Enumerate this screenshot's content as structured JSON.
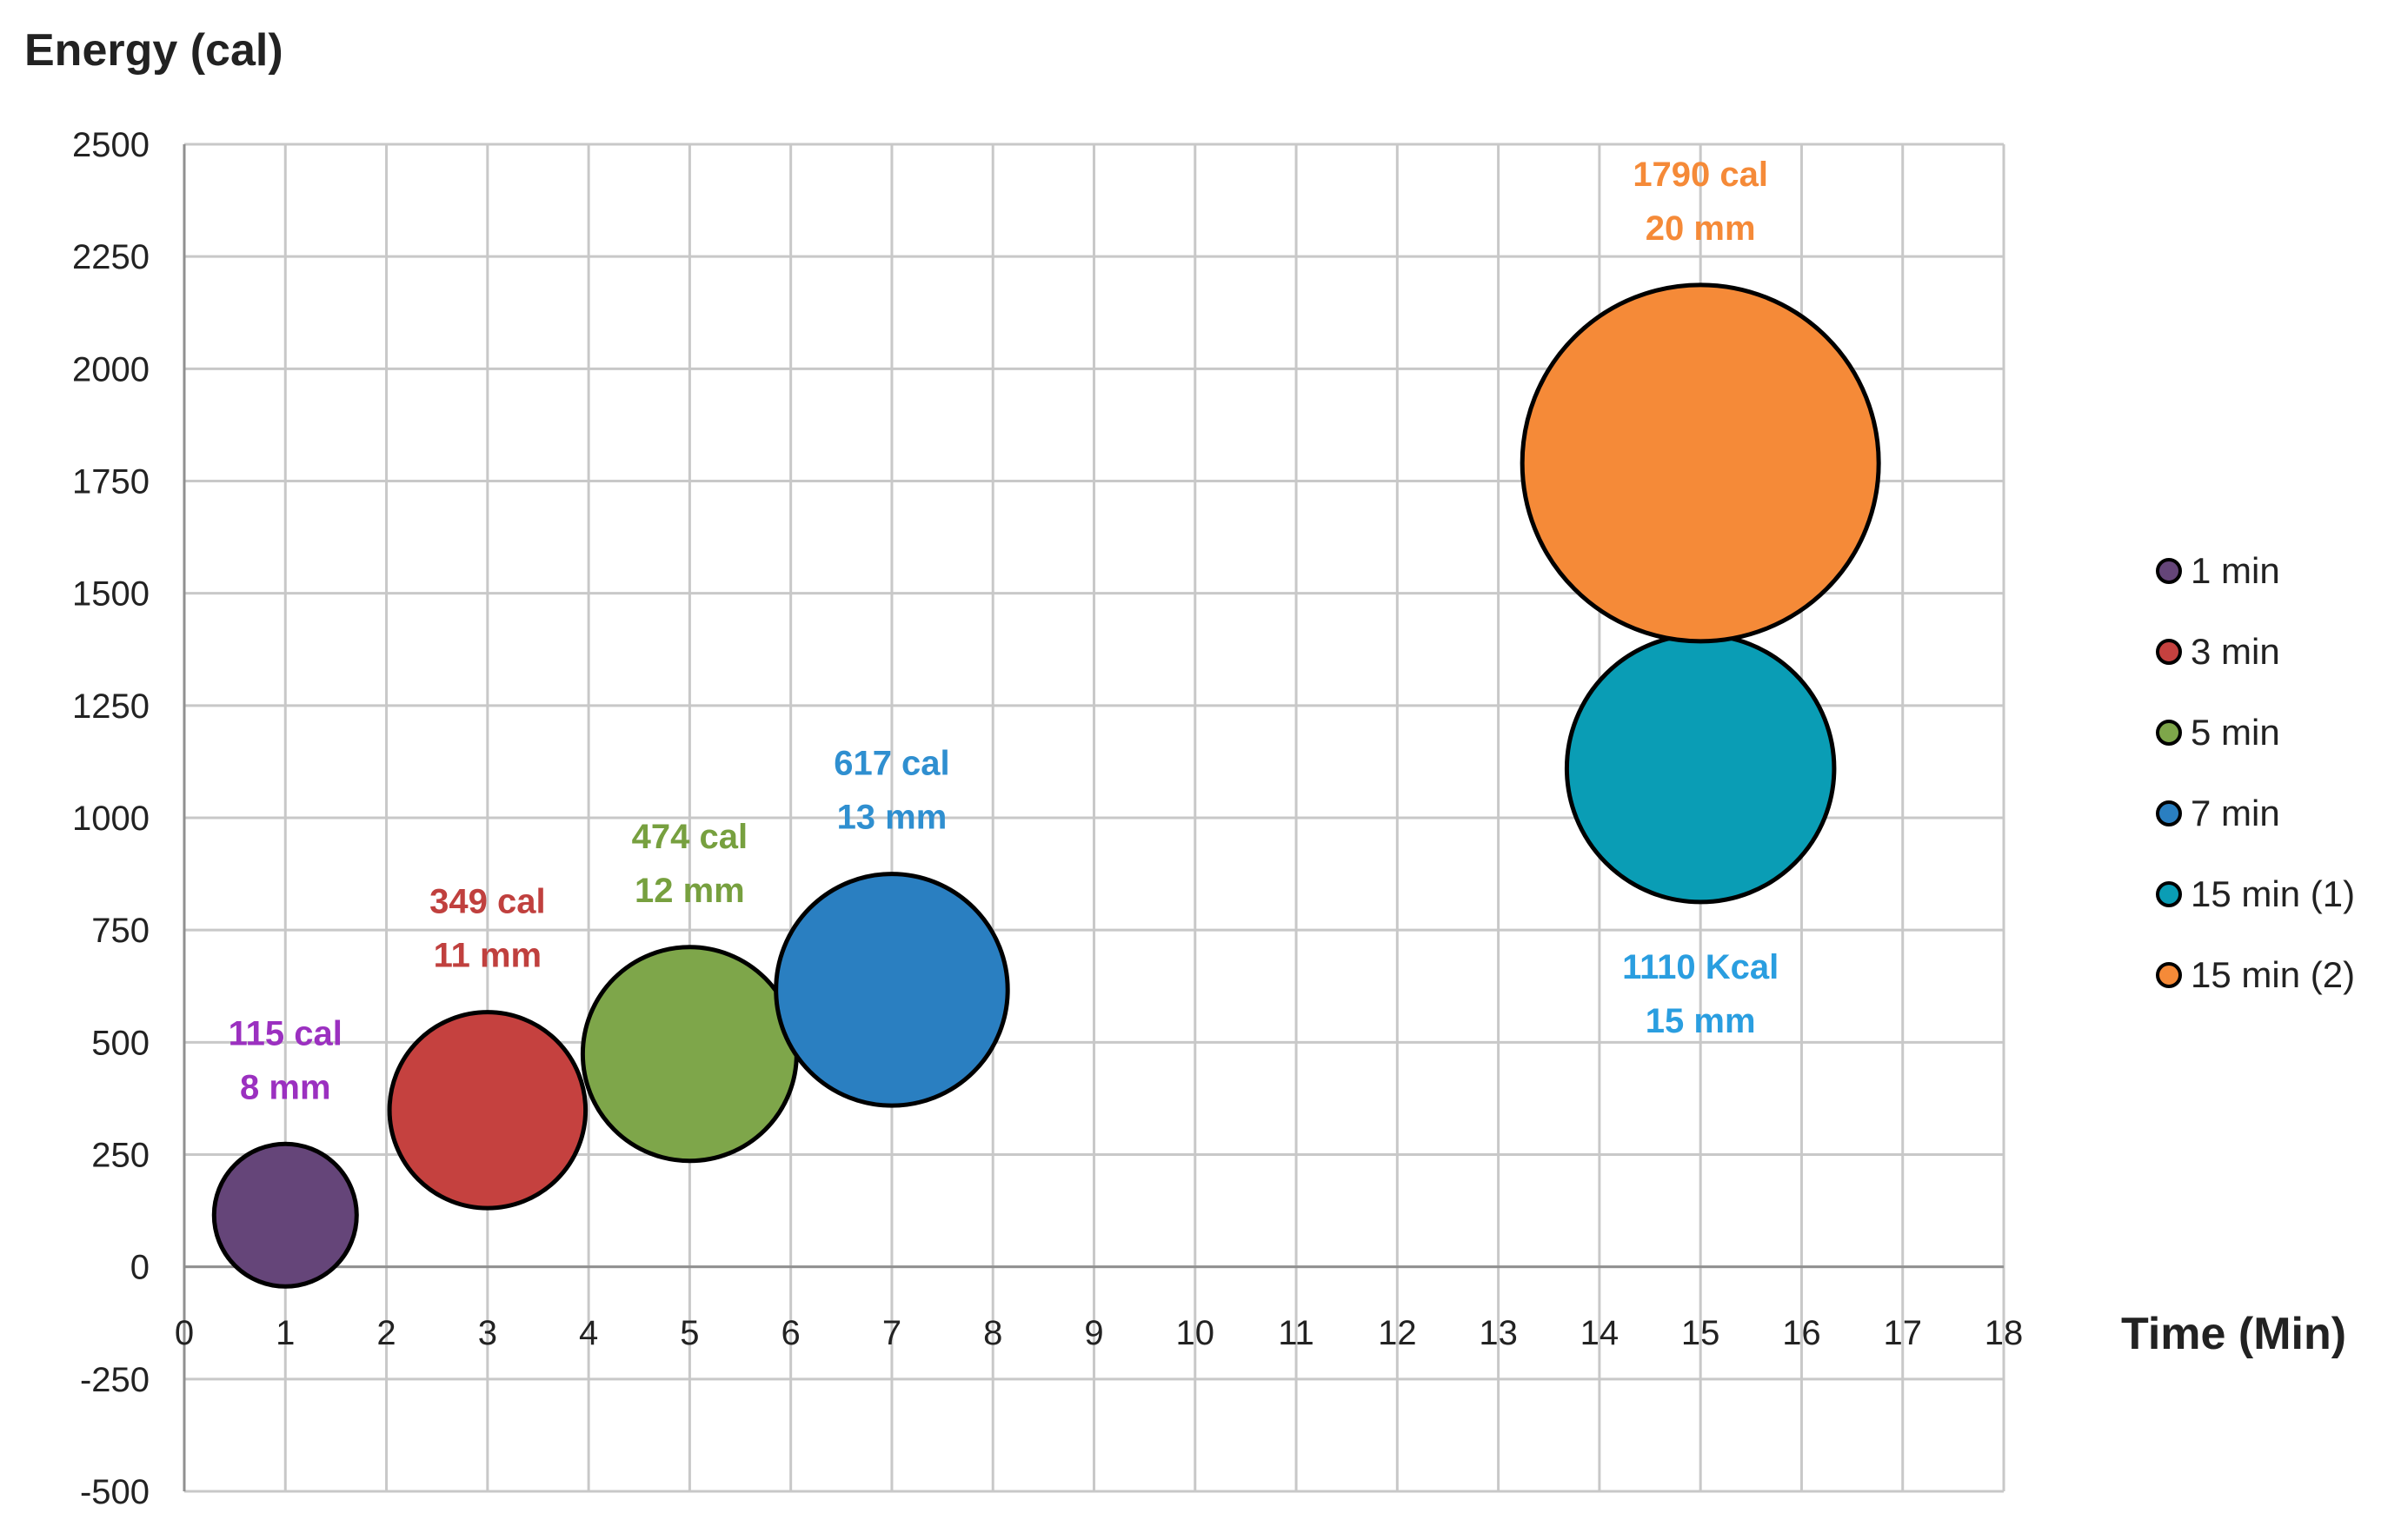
{
  "chart_data": {
    "type": "bubble",
    "ylabel": "Energy (cal)",
    "xlabel": "Time (Min)",
    "xlim": [
      0,
      18
    ],
    "ylim": [
      -500,
      2500
    ],
    "x_ticks": [
      0,
      1,
      2,
      3,
      4,
      5,
      6,
      7,
      8,
      9,
      10,
      11,
      12,
      13,
      14,
      15,
      16,
      17,
      18
    ],
    "y_ticks": [
      -500,
      -250,
      0,
      250,
      500,
      750,
      1000,
      1250,
      1500,
      1750,
      2000,
      2250,
      2500
    ],
    "grid": true,
    "legend_position": "right",
    "series": [
      {
        "name": "1 min",
        "x": 1,
        "y": 115,
        "size_mm": 8,
        "color": "#654579",
        "labels": [
          "115 cal",
          "8 mm"
        ],
        "label_color": "#9b30c0",
        "label_pos": "above"
      },
      {
        "name": "3 min",
        "x": 3,
        "y": 349,
        "size_mm": 11,
        "color": "#c5413f",
        "labels": [
          "349 cal",
          "11 mm"
        ],
        "label_color": "#c0403e",
        "label_pos": "above"
      },
      {
        "name": "5 min",
        "x": 5,
        "y": 474,
        "size_mm": 12,
        "color": "#7ea64a",
        "labels": [
          "474 cal",
          "12 mm"
        ],
        "label_color": "#77a03f",
        "label_pos": "above"
      },
      {
        "name": "7 min",
        "x": 7,
        "y": 617,
        "size_mm": 13,
        "color": "#2a7fc1",
        "labels": [
          "617 cal",
          "13 mm"
        ],
        "label_color": "#2f8fd0",
        "label_pos": "above"
      },
      {
        "name": "15 min (1)",
        "x": 15,
        "y": 1110,
        "size_mm": 15,
        "color": "#0a9db5",
        "labels": [
          "1110 Kcal",
          "15 mm"
        ],
        "label_color": "#2a9ee0",
        "label_pos": "below"
      },
      {
        "name": "15 min (2)",
        "x": 15,
        "y": 1790,
        "size_mm": 20,
        "color": "#f58a38",
        "labels": [
          "1790 cal",
          "20 mm"
        ],
        "label_color": "#f58a38",
        "label_pos": "above"
      }
    ]
  }
}
